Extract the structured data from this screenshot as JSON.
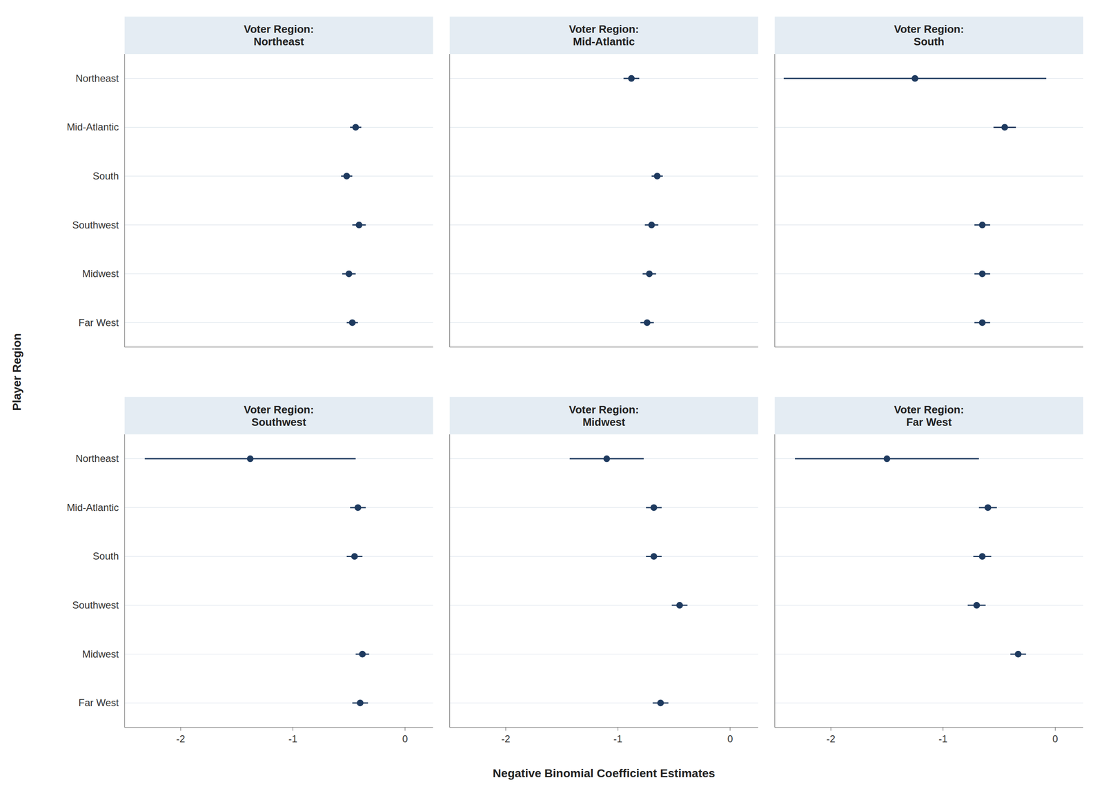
{
  "chart_data": {
    "type": "dot_whisker",
    "orientation": "horizontal",
    "xlabel": "Negative Binomial Coefficient Estimates",
    "ylabel": "Player Region",
    "xlim": [
      -2.5,
      0.25
    ],
    "xticks": [
      -2,
      -1,
      0
    ],
    "grid": true,
    "color": "#1e3a5f",
    "categories": [
      "Northeast",
      "Mid-Atlantic",
      "South",
      "Southwest",
      "Midwest",
      "Far West"
    ],
    "series": [
      {
        "name": "Voter Region:\nNortheast",
        "values": [
          null,
          -0.44,
          -0.52,
          -0.41,
          -0.5,
          -0.47
        ],
        "ci_lo": [
          null,
          -0.49,
          -0.57,
          -0.47,
          -0.56,
          -0.52
        ],
        "ci_hi": [
          null,
          -0.39,
          -0.47,
          -0.35,
          -0.44,
          -0.42
        ]
      },
      {
        "name": "Voter Region:\nMid-Atlantic",
        "values": [
          -0.88,
          null,
          -0.65,
          -0.7,
          -0.72,
          -0.74
        ],
        "ci_lo": [
          -0.95,
          null,
          -0.7,
          -0.76,
          -0.78,
          -0.8
        ],
        "ci_hi": [
          -0.81,
          null,
          -0.6,
          -0.64,
          -0.66,
          -0.68
        ]
      },
      {
        "name": "Voter Region:\nSouth",
        "values": [
          -1.25,
          -0.45,
          null,
          -0.65,
          -0.65,
          -0.65
        ],
        "ci_lo": [
          -2.42,
          -0.55,
          null,
          -0.72,
          -0.72,
          -0.72
        ],
        "ci_hi": [
          -0.08,
          -0.35,
          null,
          -0.58,
          -0.58,
          -0.58
        ]
      },
      {
        "name": "Voter Region:\nSouthwest",
        "values": [
          -1.38,
          -0.42,
          -0.45,
          null,
          -0.38,
          -0.4
        ],
        "ci_lo": [
          -2.32,
          -0.49,
          -0.52,
          null,
          -0.44,
          -0.47
        ],
        "ci_hi": [
          -0.44,
          -0.35,
          -0.38,
          null,
          -0.32,
          -0.33
        ]
      },
      {
        "name": "Voter Region:\nMidwest",
        "values": [
          -1.1,
          -0.68,
          -0.68,
          -0.45,
          null,
          -0.62
        ],
        "ci_lo": [
          -1.43,
          -0.75,
          -0.75,
          -0.52,
          null,
          -0.69
        ],
        "ci_hi": [
          -0.77,
          -0.61,
          -0.61,
          -0.38,
          null,
          -0.55
        ]
      },
      {
        "name": "Voter Region:\nFar West",
        "values": [
          -1.5,
          -0.6,
          -0.65,
          -0.7,
          -0.33,
          null
        ],
        "ci_lo": [
          -2.32,
          -0.68,
          -0.73,
          -0.78,
          -0.4,
          null
        ],
        "ci_hi": [
          -0.68,
          -0.52,
          -0.57,
          -0.62,
          -0.26,
          null
        ]
      }
    ]
  }
}
